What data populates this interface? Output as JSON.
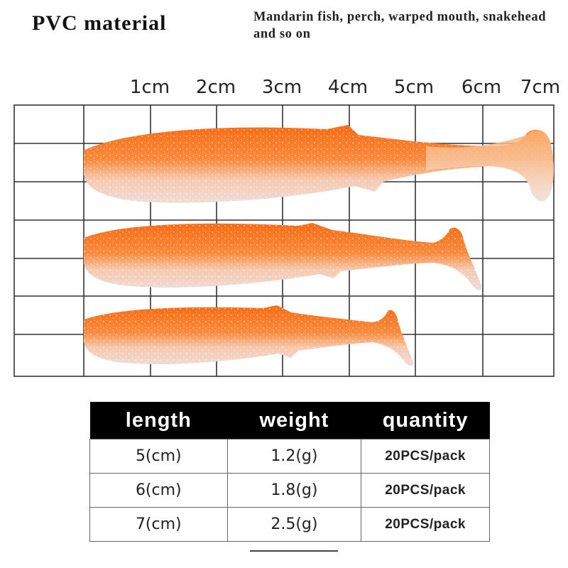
{
  "header": {
    "title": "PVC material",
    "subtitle": "Mandarin fish, perch, warped mouth, snakehead and so on"
  },
  "ruler_labels": [
    "1cm",
    "2cm",
    "3cm",
    "4cm",
    "5cm",
    "6cm",
    "7cm"
  ],
  "table": {
    "headers": {
      "length": "length",
      "weight": "weight",
      "quantity": "quantity"
    },
    "rows": [
      {
        "length": "5(cm)",
        "weight": "1.2(g)",
        "quantity": "20PCS/pack"
      },
      {
        "length": "6(cm)",
        "weight": "1.8(g)",
        "quantity": "20PCS/pack"
      },
      {
        "length": "7(cm)",
        "weight": "2.5(g)",
        "quantity": "20PCS/pack"
      }
    ]
  },
  "colors": {
    "lure_orange": "#f7741a",
    "lure_light": "#fbb580",
    "lure_belly": "#f3e1dc",
    "grid_line": "#333333"
  }
}
